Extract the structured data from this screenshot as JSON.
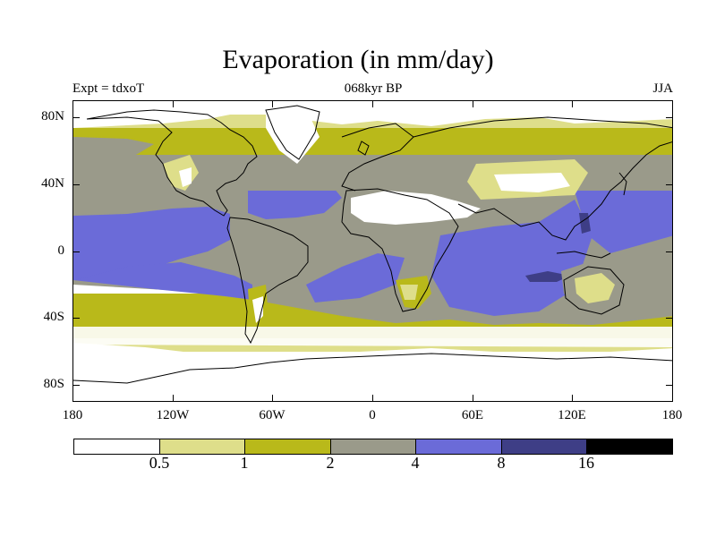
{
  "title": "Evaporation (in mm/day)",
  "subtitle_left": "Expt = tdxoT",
  "subtitle_center": "068kyr BP",
  "subtitle_right": "JJA",
  "lat_ticks": [
    "80N",
    "40N",
    "0",
    "40S",
    "80S"
  ],
  "lon_ticks": [
    "180",
    "120W",
    "60W",
    "0",
    "60E",
    "120E",
    "180"
  ],
  "colorbar": {
    "labels": [
      "0.5",
      "1",
      "2",
      "4",
      "8",
      "16"
    ],
    "colors": [
      "#ffffff",
      "#dede8a",
      "#b9b91a",
      "#9a9a8a",
      "#6b6bd8",
      "#3e3e86",
      "#000000"
    ]
  },
  "colors": {
    "white": "#ffffff",
    "pale": "#dede8a",
    "olive": "#b9b91a",
    "gray": "#9a9a8a",
    "blue": "#6b6bd8",
    "navy": "#3e3e86"
  }
}
